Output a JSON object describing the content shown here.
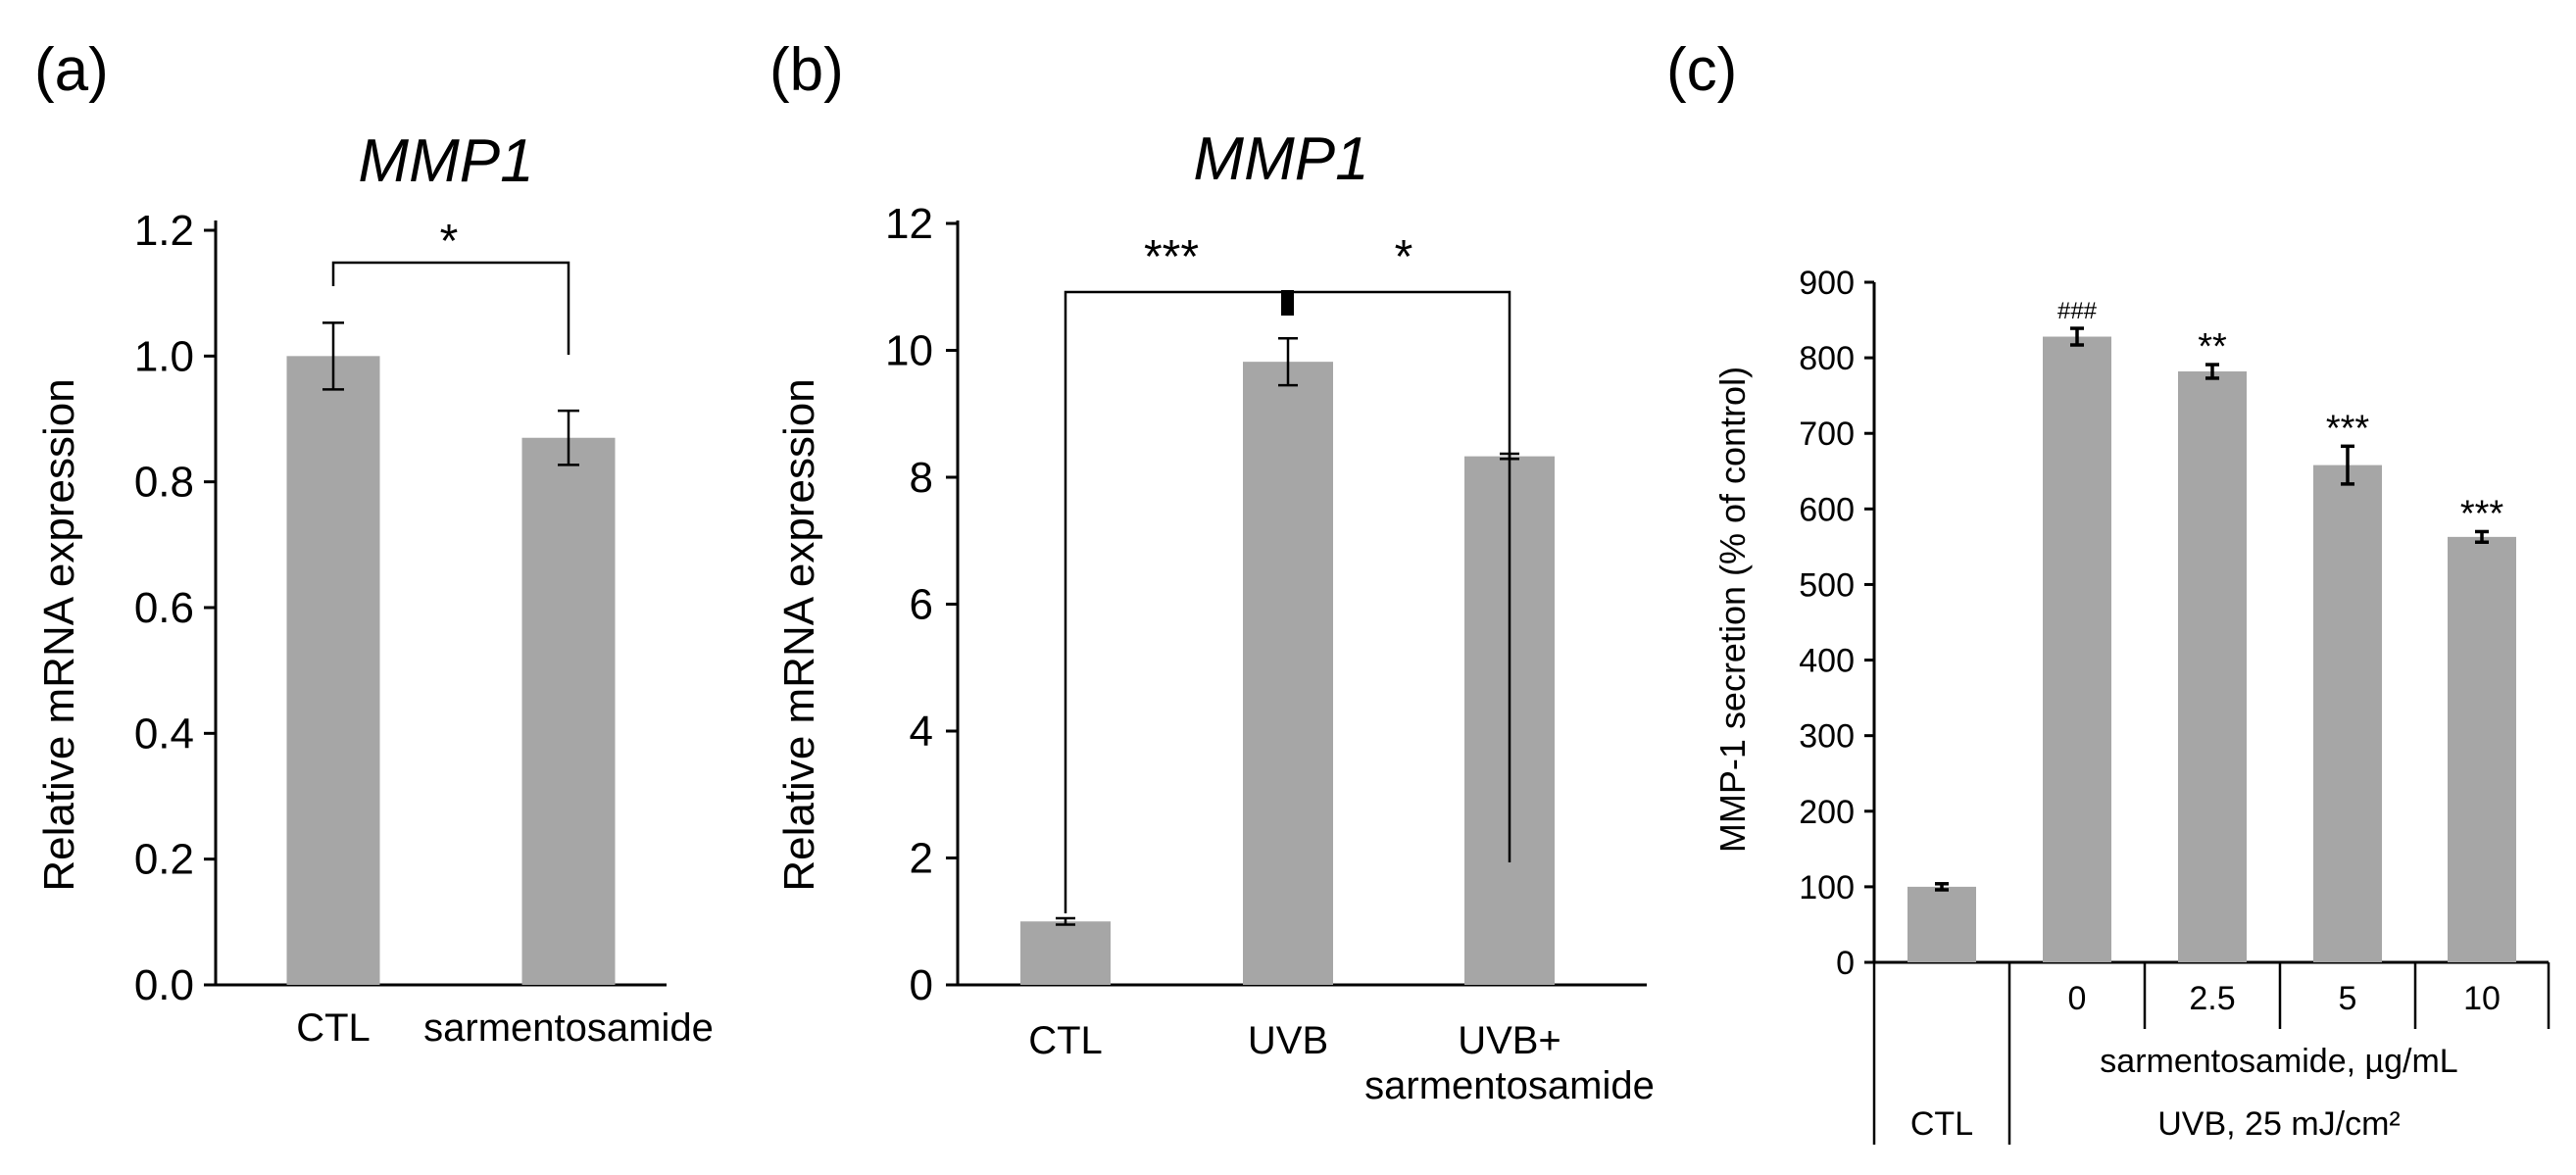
{
  "chart_data": [
    {
      "type": "bar",
      "panel_label": "(a)",
      "title": "MMP1",
      "ylabel": "Relative mRNA expression",
      "xlabel": "",
      "ylim": [
        0,
        1.2
      ],
      "yticks": [
        "0.0",
        "0.2",
        "0.4",
        "0.6",
        "0.8",
        "1.0",
        "1.2"
      ],
      "categories": [
        "CTL",
        "sarmentosamide"
      ],
      "values": [
        1.0,
        0.87
      ],
      "errors": [
        0.053,
        0.043
      ],
      "significance": [
        {
          "from": "CTL",
          "to": "sarmentosamide",
          "label": "*"
        }
      ]
    },
    {
      "type": "bar",
      "panel_label": "(b)",
      "title": "MMP1",
      "ylabel": "Relative mRNA expression",
      "xlabel": "",
      "ylim": [
        0,
        12
      ],
      "yticks": [
        "0",
        "2",
        "4",
        "6",
        "8",
        "10",
        "12"
      ],
      "categories": [
        "CTL",
        "UVB",
        "UVB+\nsarmentosamide"
      ],
      "values": [
        1.0,
        9.82,
        8.33
      ],
      "errors": [
        0.05,
        0.37,
        0.04
      ],
      "significance": [
        {
          "from": "CTL",
          "to": "UVB",
          "label": "***"
        },
        {
          "from": "UVB",
          "to": "UVB+\nsarmentosamide",
          "label": "*"
        }
      ]
    },
    {
      "type": "bar",
      "panel_label": "(c)",
      "title": "",
      "ylabel": "MMP-1 secretion  (% of control)",
      "xlabel": "",
      "ylim": [
        0,
        900
      ],
      "yticks": [
        "0",
        "100",
        "200",
        "300",
        "400",
        "500",
        "600",
        "700",
        "800",
        "900"
      ],
      "categories": [
        "CTL",
        "0",
        "2.5",
        "5",
        "10"
      ],
      "values": [
        100,
        828,
        782,
        658,
        563
      ],
      "errors": [
        4,
        11,
        9,
        25,
        7
      ],
      "annotations": [
        "",
        "###",
        "**",
        "***",
        "***"
      ],
      "table": {
        "dose_label": "sarmentosamide, µg/mL",
        "ctl_label": "CTL",
        "uvb_label": "UVB, 25 mJ/cm²"
      }
    }
  ]
}
